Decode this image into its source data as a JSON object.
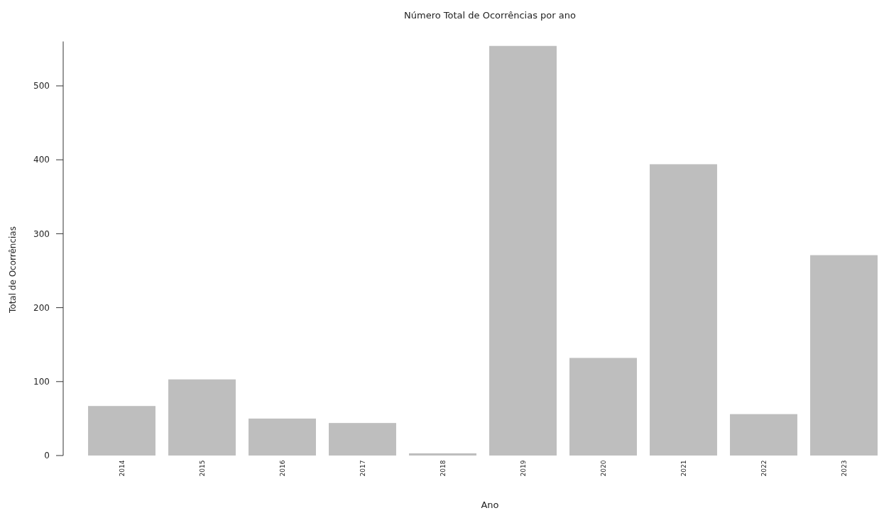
{
  "chart_data": {
    "type": "bar",
    "title": "Número Total de Ocorrências por ano",
    "xlabel": "Ano",
    "ylabel": "Total de Ocorrências",
    "categories": [
      "2014",
      "2015",
      "2016",
      "2017",
      "2018",
      "2019",
      "2020",
      "2021",
      "2022",
      "2023"
    ],
    "values": [
      67,
      103,
      50,
      44,
      3,
      554,
      132,
      394,
      56,
      271
    ],
    "color": "#bebebe",
    "ylim": [
      0,
      560
    ],
    "yticks": [
      0,
      100,
      200,
      300,
      400,
      500
    ],
    "grid": false
  }
}
